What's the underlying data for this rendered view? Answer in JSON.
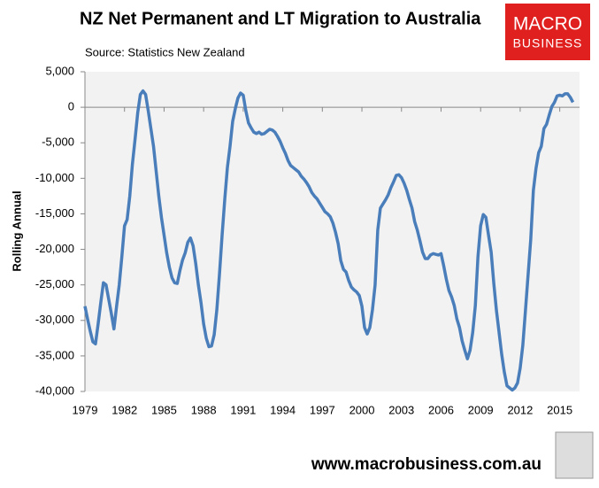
{
  "chart_data": {
    "type": "line",
    "title": "NZ Net Permanent and LT Migration to Australia",
    "subtitle": "Source: Statistics New Zealand",
    "y_label": "Rolling Annual",
    "brand": [
      "MACRO",
      "BUSINESS"
    ],
    "footer": "www.macrobusiness.com.au",
    "color": "#4a7ebb",
    "xlim": [
      1979,
      2016.5
    ],
    "xticks": [
      1979,
      1982,
      1985,
      1988,
      1991,
      1994,
      1997,
      2000,
      2003,
      2006,
      2009,
      2012,
      2015
    ],
    "ylim": [
      -40000,
      5000
    ],
    "yticks": [
      {
        "value": 5000,
        "label": "5,000"
      },
      0,
      {
        "value": -5000,
        "label": "-5,000"
      },
      {
        "value": -10000,
        "label": "-10,000"
      },
      {
        "value": -15000,
        "label": "-15,000"
      },
      {
        "value": -20000,
        "label": "-20,000"
      },
      {
        "value": -25000,
        "label": "-25,000"
      },
      {
        "value": -30000,
        "label": "-30,000"
      },
      {
        "value": -35000,
        "label": "-35,000"
      },
      {
        "value": -40000,
        "label": "-40,000"
      }
    ],
    "x": [
      1979,
      1979.2,
      1979.4,
      1979.6,
      1979.8,
      1980,
      1980.2,
      1980.4,
      1980.6,
      1980.8,
      1981,
      1981.2,
      1981.4,
      1981.6,
      1981.8,
      1982,
      1982.2,
      1982.4,
      1982.6,
      1982.8,
      1983,
      1983.2,
      1983.4,
      1983.6,
      1983.8,
      1984,
      1984.2,
      1984.4,
      1984.6,
      1984.8,
      1985,
      1985.2,
      1985.4,
      1985.6,
      1985.8,
      1986,
      1986.2,
      1986.4,
      1986.6,
      1986.8,
      1987,
      1987.2,
      1987.4,
      1987.6,
      1987.8,
      1988,
      1988.2,
      1988.4,
      1988.6,
      1988.8,
      1989,
      1989.2,
      1989.4,
      1989.6,
      1989.8,
      1990,
      1990.2,
      1990.4,
      1990.6,
      1990.8,
      1991,
      1991.2,
      1991.4,
      1991.6,
      1991.8,
      1992,
      1992.2,
      1992.4,
      1992.6,
      1992.8,
      1993,
      1993.2,
      1993.4,
      1993.6,
      1993.8,
      1994,
      1994.2,
      1994.4,
      1994.6,
      1994.8,
      1995,
      1995.2,
      1995.4,
      1995.6,
      1995.8,
      1996,
      1996.2,
      1996.4,
      1996.6,
      1996.8,
      1997,
      1997.2,
      1997.4,
      1997.6,
      1997.8,
      1998,
      1998.2,
      1998.4,
      1998.6,
      1998.8,
      1999,
      1999.2,
      1999.4,
      1999.6,
      1999.8,
      2000,
      2000.2,
      2000.4,
      2000.6,
      2000.8,
      2001,
      2001.2,
      2001.4,
      2001.6,
      2001.8,
      2002,
      2002.2,
      2002.4,
      2002.6,
      2002.8,
      2003,
      2003.2,
      2003.4,
      2003.6,
      2003.8,
      2004,
      2004.2,
      2004.4,
      2004.6,
      2004.8,
      2005,
      2005.2,
      2005.4,
      2005.6,
      2005.8,
      2006,
      2006.2,
      2006.4,
      2006.6,
      2006.8,
      2007,
      2007.2,
      2007.4,
      2007.6,
      2007.8,
      2008,
      2008.2,
      2008.4,
      2008.6,
      2008.8,
      2009,
      2009.2,
      2009.4,
      2009.6,
      2009.8,
      2010,
      2010.2,
      2010.4,
      2010.6,
      2010.8,
      2011,
      2011.2,
      2011.4,
      2011.6,
      2011.8,
      2012,
      2012.2,
      2012.4,
      2012.6,
      2012.8,
      2013,
      2013.2,
      2013.4,
      2013.6,
      2013.8,
      2014,
      2014.2,
      2014.4,
      2014.6,
      2014.8,
      2015,
      2015.2,
      2015.4,
      2015.6,
      2015.8,
      2016
    ],
    "values": [
      -28000,
      -29800,
      -31500,
      -33000,
      -33300,
      -30500,
      -27500,
      -24700,
      -25000,
      -27000,
      -29000,
      -31200,
      -28000,
      -25000,
      -21000,
      -16700,
      -15800,
      -12500,
      -8000,
      -4500,
      -800,
      1800,
      2300,
      1800,
      -500,
      -3000,
      -5500,
      -9000,
      -12500,
      -15500,
      -18000,
      -20500,
      -22500,
      -24000,
      -24700,
      -24800,
      -23000,
      -21500,
      -20500,
      -19000,
      -18400,
      -19500,
      -22000,
      -25000,
      -27500,
      -30500,
      -32500,
      -33700,
      -33600,
      -32000,
      -28500,
      -23500,
      -18000,
      -13000,
      -8500,
      -5500,
      -2000,
      -200,
      1300,
      2000,
      1700,
      -500,
      -2200,
      -2900,
      -3500,
      -3700,
      -3500,
      -3800,
      -3700,
      -3400,
      -3100,
      -3200,
      -3500,
      -4100,
      -4800,
      -5700,
      -6500,
      -7500,
      -8200,
      -8500,
      -8800,
      -9100,
      -9700,
      -10100,
      -10600,
      -11200,
      -12000,
      -12500,
      -12900,
      -13500,
      -14100,
      -14700,
      -15000,
      -15400,
      -16300,
      -17600,
      -19200,
      -21600,
      -22800,
      -23200,
      -24400,
      -25300,
      -25700,
      -26000,
      -26500,
      -28000,
      -31000,
      -31900,
      -31000,
      -28500,
      -25000,
      -17300,
      -14200,
      -13600,
      -13000,
      -12300,
      -11300,
      -10500,
      -9600,
      -9500,
      -9900,
      -10700,
      -11700,
      -13000,
      -14200,
      -16100,
      -17300,
      -18800,
      -20400,
      -21300,
      -21300,
      -20800,
      -20600,
      -20700,
      -20800,
      -20600,
      -22300,
      -24200,
      -25800,
      -26700,
      -27900,
      -29800,
      -31000,
      -32900,
      -34200,
      -35400,
      -34200,
      -31700,
      -27900,
      -21000,
      -16700,
      -15100,
      -15500,
      -18000,
      -20400,
      -24800,
      -28600,
      -31700,
      -34800,
      -37300,
      -39200,
      -39500,
      -39800,
      -39500,
      -38800,
      -36700,
      -33500,
      -28600,
      -23600,
      -18600,
      -11700,
      -8600,
      -6400,
      -5500,
      -3000,
      -2400,
      -1100,
      100,
      700,
      1600,
      1700,
      1600,
      1900,
      1900,
      1400,
      700
    ]
  }
}
